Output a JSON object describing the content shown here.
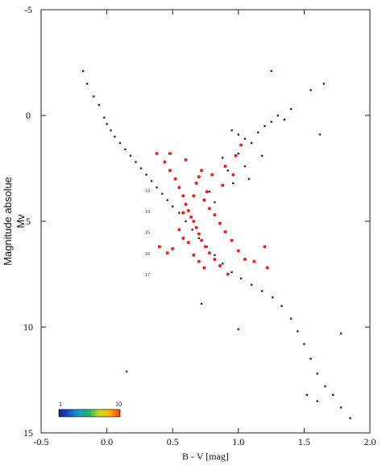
{
  "chart_data": {
    "type": "scatter",
    "xlabel": "B - V [mag]",
    "ylabel_line1": "Magnitude absolue",
    "ylabel_line2": "Mv",
    "xlim": [
      -0.5,
      2.0
    ],
    "ylim": [
      15,
      -5
    ],
    "y_inverted": true,
    "xticks": [
      -0.5,
      0.0,
      0.5,
      1.0,
      1.5,
      2.0
    ],
    "xtick_labels": [
      "-0.5",
      "0.0",
      "0.5",
      "1.0",
      "1.5",
      "2.0"
    ],
    "yticks": [
      -5,
      0,
      5,
      10,
      15
    ],
    "ytick_labels": [
      "-5",
      "0",
      "5",
      "10",
      "15"
    ],
    "grid": false,
    "colors": {
      "field_stars": "#1c2a6e",
      "cluster_stars": "#ff1a1a",
      "colorbar": [
        "#1a1a8c",
        "#1450c8",
        "#14a0c8",
        "#28b464",
        "#c8dc1e",
        "#ffb400",
        "#ff3c14"
      ]
    },
    "colorbar": {
      "min_label": "1",
      "max_label": "10",
      "placement": "bottom-left"
    },
    "annotations": [
      {
        "text": "13",
        "x": 0.29,
        "y": 3.6
      },
      {
        "text": "14",
        "x": 0.29,
        "y": 4.6
      },
      {
        "text": "15",
        "x": 0.29,
        "y": 5.6
      },
      {
        "text": "16",
        "x": 0.29,
        "y": 6.6
      },
      {
        "text": "17",
        "x": 0.29,
        "y": 7.6
      }
    ],
    "series": [
      {
        "name": "",
        "values": [
          [
            -0.18,
            -2.1
          ],
          [
            -0.15,
            -1.5
          ],
          [
            -0.1,
            -0.9
          ],
          [
            -0.06,
            -0.5
          ],
          [
            -0.02,
            0.1
          ],
          [
            0.0,
            0.4
          ],
          [
            0.03,
            0.7
          ],
          [
            0.06,
            1.0
          ],
          [
            0.1,
            1.3
          ],
          [
            0.14,
            1.6
          ],
          [
            0.18,
            1.9
          ],
          [
            0.22,
            2.2
          ],
          [
            0.26,
            2.5
          ],
          [
            0.3,
            2.8
          ],
          [
            0.34,
            3.1
          ],
          [
            0.38,
            3.4
          ],
          [
            0.42,
            3.7
          ],
          [
            0.46,
            4.0
          ],
          [
            0.5,
            4.3
          ],
          [
            0.55,
            4.6
          ],
          [
            0.6,
            5.0
          ],
          [
            0.65,
            5.4
          ],
          [
            0.7,
            5.8
          ],
          [
            0.76,
            6.2
          ],
          [
            0.82,
            6.6
          ],
          [
            0.88,
            7.0
          ],
          [
            0.95,
            7.4
          ],
          [
            1.02,
            7.7
          ],
          [
            1.1,
            8.0
          ],
          [
            1.18,
            8.3
          ],
          [
            1.26,
            8.6
          ],
          [
            1.33,
            9.0
          ],
          [
            1.4,
            9.6
          ],
          [
            1.45,
            10.2
          ],
          [
            1.5,
            10.8
          ],
          [
            1.55,
            11.5
          ],
          [
            1.6,
            12.2
          ],
          [
            1.66,
            12.8
          ],
          [
            1.72,
            13.2
          ],
          [
            1.85,
            14.3
          ],
          [
            0.95,
            0.7
          ],
          [
            1.0,
            0.9
          ],
          [
            1.05,
            1.1
          ],
          [
            1.1,
            1.3
          ],
          [
            1.15,
            0.8
          ],
          [
            1.2,
            0.5
          ],
          [
            1.25,
            0.3
          ],
          [
            1.3,
            0.0
          ],
          [
            1.35,
            0.2
          ],
          [
            1.4,
            -0.3
          ],
          [
            0.88,
            2.0
          ],
          [
            0.92,
            2.6
          ],
          [
            0.96,
            3.2
          ],
          [
            1.0,
            1.8
          ],
          [
            1.05,
            2.4
          ],
          [
            0.78,
            3.6
          ],
          [
            0.82,
            4.1
          ],
          [
            1.25,
            -2.1
          ],
          [
            1.55,
            -1.2
          ],
          [
            1.65,
            -1.5
          ],
          [
            1.62,
            0.9
          ],
          [
            1.18,
            1.9
          ],
          [
            1.08,
            3.0
          ],
          [
            0.72,
            8.9
          ],
          [
            1.0,
            10.1
          ],
          [
            0.15,
            12.1
          ],
          [
            1.78,
            13.8
          ],
          [
            1.6,
            13.5
          ],
          [
            1.52,
            13.2
          ],
          [
            1.78,
            10.3
          ]
        ]
      },
      {
        "name": "",
        "values": [
          [
            0.38,
            1.8
          ],
          [
            0.44,
            2.2
          ],
          [
            0.48,
            2.6
          ],
          [
            0.52,
            3.0
          ],
          [
            0.55,
            3.4
          ],
          [
            0.58,
            3.8
          ],
          [
            0.6,
            4.2
          ],
          [
            0.62,
            4.5
          ],
          [
            0.64,
            4.8
          ],
          [
            0.66,
            5.0
          ],
          [
            0.68,
            5.3
          ],
          [
            0.7,
            5.6
          ],
          [
            0.72,
            5.9
          ],
          [
            0.75,
            6.2
          ],
          [
            0.78,
            6.5
          ],
          [
            0.82,
            6.8
          ],
          [
            0.86,
            7.1
          ],
          [
            0.55,
            5.4
          ],
          [
            0.58,
            5.8
          ],
          [
            0.62,
            6.0
          ],
          [
            0.5,
            6.3
          ],
          [
            0.46,
            6.5
          ],
          [
            0.4,
            6.2
          ],
          [
            0.68,
            3.2
          ],
          [
            0.7,
            2.9
          ],
          [
            0.74,
            4.0
          ],
          [
            0.78,
            4.4
          ],
          [
            0.82,
            4.7
          ],
          [
            0.86,
            5.1
          ],
          [
            0.9,
            5.5
          ],
          [
            0.95,
            5.9
          ],
          [
            1.0,
            6.4
          ],
          [
            1.05,
            6.8
          ],
          [
            1.12,
            6.9
          ],
          [
            1.2,
            6.2
          ],
          [
            0.48,
            1.8
          ],
          [
            0.6,
            2.1
          ],
          [
            0.72,
            2.6
          ],
          [
            0.8,
            2.8
          ],
          [
            0.9,
            2.4
          ],
          [
            0.98,
            1.9
          ],
          [
            1.02,
            1.4
          ],
          [
            0.96,
            2.8
          ],
          [
            0.88,
            3.3
          ],
          [
            0.76,
            3.6
          ],
          [
            0.66,
            3.8
          ],
          [
            0.58,
            4.6
          ],
          [
            0.66,
            6.6
          ],
          [
            0.7,
            6.9
          ],
          [
            0.74,
            7.2
          ],
          [
            1.22,
            7.2
          ],
          [
            0.92,
            7.5
          ]
        ]
      }
    ]
  }
}
